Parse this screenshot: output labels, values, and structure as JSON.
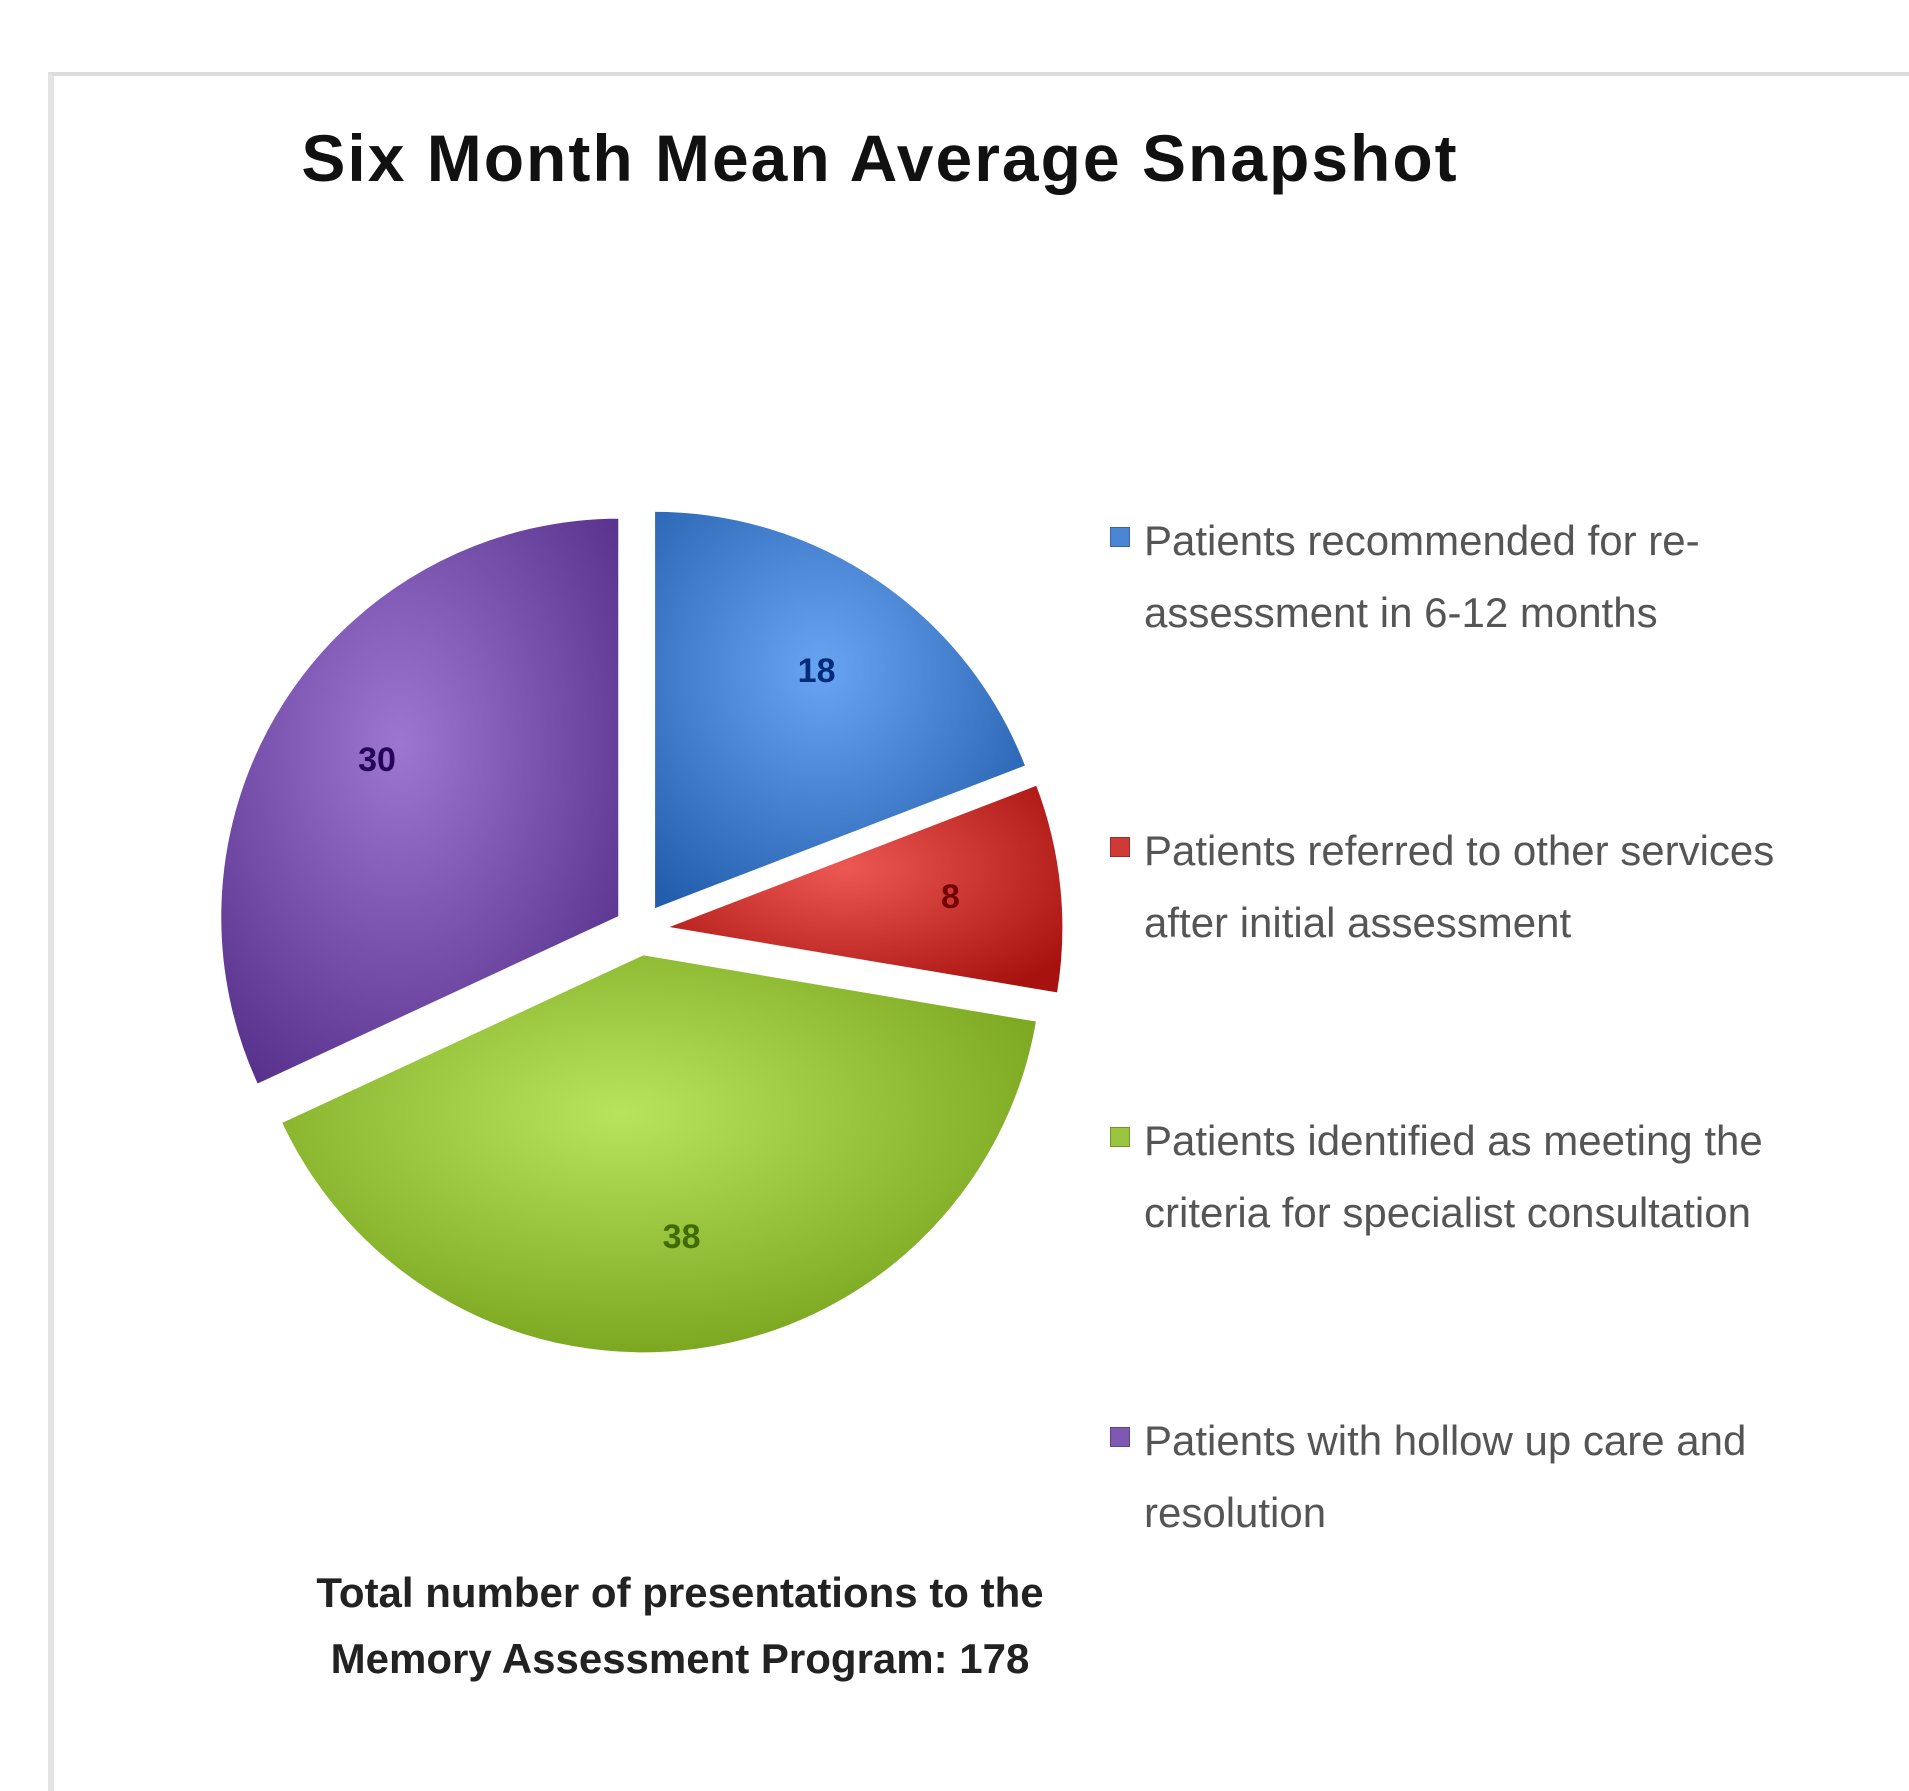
{
  "chart_data": {
    "type": "pie",
    "title": "Six Month Mean Average Snapshot",
    "slices": [
      {
        "label": "Patients recommended for re-assessment in 6-12 months",
        "value": 18,
        "color": "#4a86d4"
      },
      {
        "label": "Patients referred to other services after initial assessment",
        "value": 8,
        "color": "#cf3a36"
      },
      {
        "label": "Patients identified as meeting the criteria for specialist consultation",
        "value": 38,
        "color": "#9ac53e"
      },
      {
        "label": "Patients with hollow up care and resolution",
        "value": 30,
        "color": "#7e58b2"
      }
    ],
    "legend_position": "right",
    "exploded": true
  },
  "footer": {
    "total_text": "Total number of presentations to the Memory Assessment Program: 178"
  }
}
